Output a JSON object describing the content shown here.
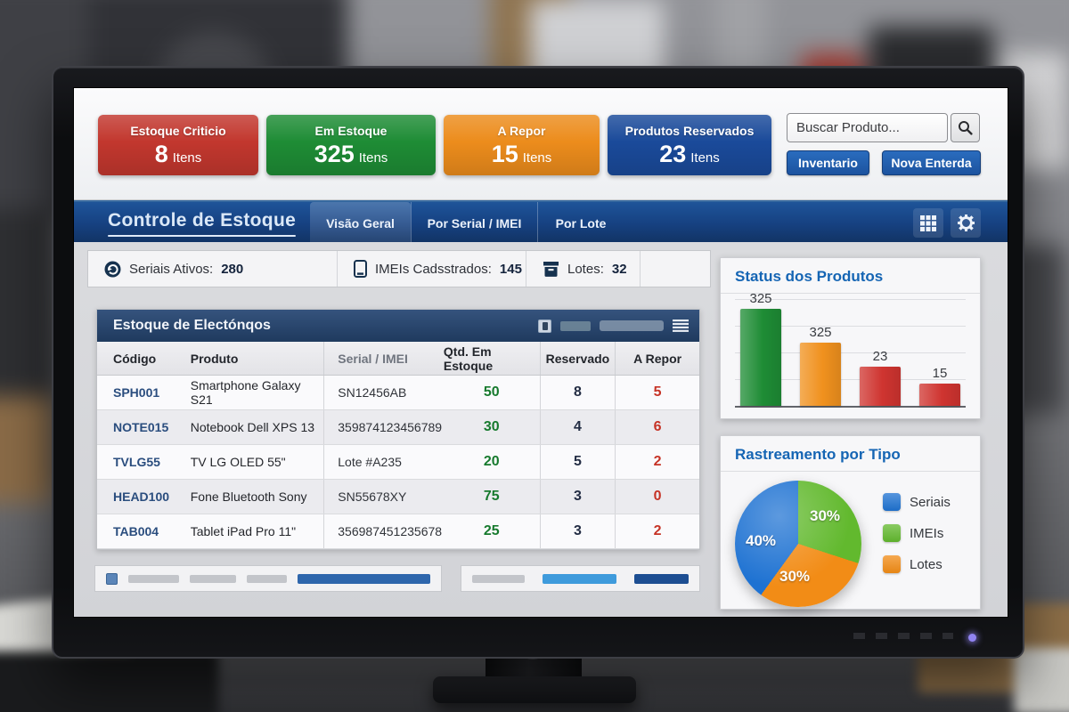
{
  "header": {
    "cards": [
      {
        "title": "Estoque Criticio",
        "value": "8",
        "unit": "Itens",
        "color": "#c2372e"
      },
      {
        "title": "Em Estoque",
        "value": "325",
        "unit": "Itens",
        "color": "#1e8c35"
      },
      {
        "title": "A Repor",
        "value": "15",
        "unit": "Itens",
        "color": "#ec8c1c"
      },
      {
        "title": "Produtos Reservados",
        "value": "23",
        "unit": "Itens",
        "color": "#1a4a9a"
      }
    ],
    "search": {
      "placeholder": "Buscar Produto...",
      "icon": "magnifier-icon"
    },
    "buttons": [
      {
        "label": "Inventario"
      },
      {
        "label": "Nova Enterda"
      }
    ]
  },
  "navbar": {
    "title": "Controle de Estoque",
    "tabs": [
      {
        "label": "Visão Geral",
        "active": true
      },
      {
        "label": "Por Serial / IMEI",
        "active": false
      },
      {
        "label": "Por Lote",
        "active": false
      }
    ],
    "icons": [
      "grid-icon",
      "gear-icon"
    ],
    "color": "#164181"
  },
  "stats_bar": [
    {
      "icon": "refresh-circle-icon",
      "label": "Seriais Ativos:",
      "value": "280"
    },
    {
      "icon": "smartphone-icon",
      "label": "IMEIs Cadsstrados:",
      "value": "145"
    },
    {
      "icon": "box-icon",
      "label": "Lotes:",
      "value": "32"
    }
  ],
  "table": {
    "title": "Estoque de Electónqos",
    "columns": [
      "Código",
      "Produto",
      "Serial / IMEI",
      "Qtd. Em Estoque",
      "Reservado",
      "A Repor"
    ],
    "rows": [
      {
        "code": "SPH001",
        "product": "Smartphone Galaxy S21",
        "serial": "SN12456AB",
        "stock": "50",
        "reserved": "8",
        "repor": "5"
      },
      {
        "code": "NOTE015",
        "product": "Notebook Dell XPS 13",
        "serial": "359874123456789",
        "stock": "30",
        "reserved": "4",
        "repor": "6"
      },
      {
        "code": "TVLG55",
        "product": "TV LG OLED 55\"",
        "serial": "Lote #A235",
        "stock": "20",
        "reserved": "5",
        "repor": "2"
      },
      {
        "code": "HEAD100",
        "product": "Fone Bluetooth Sony",
        "serial": "SN55678XY",
        "stock": "75",
        "reserved": "3",
        "repor": "0"
      },
      {
        "code": "TAB004",
        "product": "Tablet iPad Pro 11\"",
        "serial": "356987451235678",
        "stock": "25",
        "reserved": "3",
        "repor": "2"
      }
    ],
    "value_colors": {
      "stock": "#177a2e",
      "reserved": "#232d44",
      "repor": "#c63326"
    }
  },
  "chart_data": [
    {
      "type": "bar",
      "title": "Status dos Produtos",
      "categories": [
        "",
        "",
        "",
        ""
      ],
      "values": [
        325,
        325,
        23,
        15
      ],
      "data_labels": [
        "325",
        "325",
        "23",
        "15"
      ],
      "bar_colors": [
        "#1e8c35",
        "#f0911e",
        "#cf3430",
        "#cf3430"
      ],
      "display_heights_pct": [
        97,
        63,
        39,
        22
      ],
      "grid": true,
      "xlabel": "",
      "ylabel": ""
    },
    {
      "type": "pie",
      "title": "Rastreamento por Tipo",
      "slices": [
        {
          "label": "Seriais",
          "value": 40,
          "display": "40%",
          "color": "#1e72d2"
        },
        {
          "label": "IMEIs",
          "value": 30,
          "display": "30%",
          "color": "#62b92e"
        },
        {
          "label": "Lotes",
          "value": 30,
          "display": "30%",
          "color": "#f28c16"
        }
      ],
      "draw_order": [
        "IMEIs",
        "Lotes",
        "Seriais"
      ],
      "legend_position": "right"
    }
  ],
  "monitor": {
    "power_led_color": "#9184f2"
  }
}
